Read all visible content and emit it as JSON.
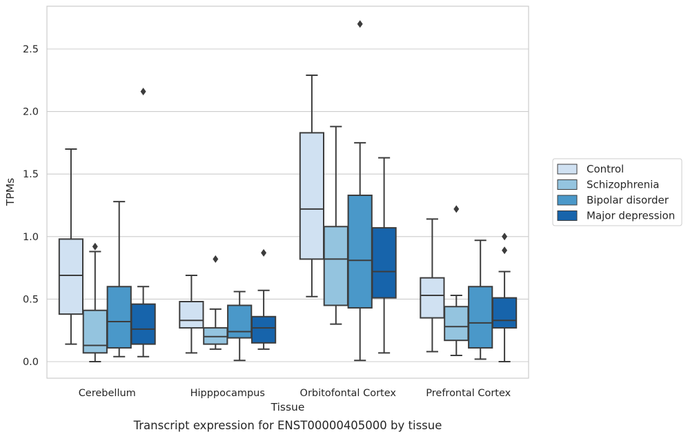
{
  "chart_data": {
    "type": "box",
    "title": "",
    "caption": "Transcript expression for ENST00000405000 by tissue",
    "xlabel": "Tissue",
    "ylabel": "TPMs",
    "ylim": [
      -0.13,
      2.85
    ],
    "yticks": [
      0.0,
      0.5,
      1.0,
      1.5,
      2.0,
      2.5
    ],
    "ytick_labels": [
      "0.0",
      "0.5",
      "1.0",
      "1.5",
      "2.0",
      "2.5"
    ],
    "grid": "horizontal",
    "legend_position": "right",
    "categories": [
      "Cerebellum",
      "Hipppocampus",
      "Orbitofontal Cortex",
      "Prefrontal Cortex"
    ],
    "series": [
      {
        "name": "Control",
        "color": "#d0e1f2",
        "boxes": [
          {
            "whisker_low": 0.14,
            "q1": 0.38,
            "median": 0.69,
            "q3": 0.98,
            "whisker_high": 1.7,
            "outliers": []
          },
          {
            "whisker_low": 0.07,
            "q1": 0.27,
            "median": 0.33,
            "q3": 0.48,
            "whisker_high": 0.69,
            "outliers": []
          },
          {
            "whisker_low": 0.52,
            "q1": 0.82,
            "median": 1.22,
            "q3": 1.83,
            "whisker_high": 2.29,
            "outliers": []
          },
          {
            "whisker_low": 0.08,
            "q1": 0.35,
            "median": 0.53,
            "q3": 0.67,
            "whisker_high": 1.14,
            "outliers": []
          }
        ]
      },
      {
        "name": "Schizophrenia",
        "color": "#94c4df",
        "boxes": [
          {
            "whisker_low": 0.0,
            "q1": 0.07,
            "median": 0.13,
            "q3": 0.41,
            "whisker_high": 0.88,
            "outliers": [
              0.92
            ]
          },
          {
            "whisker_low": 0.1,
            "q1": 0.14,
            "median": 0.2,
            "q3": 0.27,
            "whisker_high": 0.42,
            "outliers": [
              0.82
            ]
          },
          {
            "whisker_low": 0.3,
            "q1": 0.45,
            "median": 0.82,
            "q3": 1.08,
            "whisker_high": 1.88,
            "outliers": []
          },
          {
            "whisker_low": 0.05,
            "q1": 0.17,
            "median": 0.28,
            "q3": 0.44,
            "whisker_high": 0.53,
            "outliers": [
              1.22
            ]
          }
        ]
      },
      {
        "name": "Bipolar disorder",
        "color": "#4a98c9",
        "boxes": [
          {
            "whisker_low": 0.04,
            "q1": 0.11,
            "median": 0.32,
            "q3": 0.6,
            "whisker_high": 1.28,
            "outliers": []
          },
          {
            "whisker_low": 0.01,
            "q1": 0.19,
            "median": 0.24,
            "q3": 0.45,
            "whisker_high": 0.56,
            "outliers": []
          },
          {
            "whisker_low": 0.01,
            "q1": 0.43,
            "median": 0.81,
            "q3": 1.33,
            "whisker_high": 1.75,
            "outliers": [
              2.7
            ]
          },
          {
            "whisker_low": 0.02,
            "q1": 0.11,
            "median": 0.31,
            "q3": 0.6,
            "whisker_high": 0.97,
            "outliers": []
          }
        ]
      },
      {
        "name": "Major depression",
        "color": "#1764ab",
        "boxes": [
          {
            "whisker_low": 0.04,
            "q1": 0.14,
            "median": 0.26,
            "q3": 0.46,
            "whisker_high": 0.6,
            "outliers": [
              2.16
            ]
          },
          {
            "whisker_low": 0.1,
            "q1": 0.15,
            "median": 0.27,
            "q3": 0.36,
            "whisker_high": 0.57,
            "outliers": [
              0.87
            ]
          },
          {
            "whisker_low": 0.07,
            "q1": 0.51,
            "median": 0.72,
            "q3": 1.07,
            "whisker_high": 1.63,
            "outliers": []
          },
          {
            "whisker_low": 0.0,
            "q1": 0.27,
            "median": 0.33,
            "q3": 0.51,
            "whisker_high": 0.72,
            "outliers": [
              0.89,
              1.0
            ]
          }
        ]
      }
    ]
  }
}
